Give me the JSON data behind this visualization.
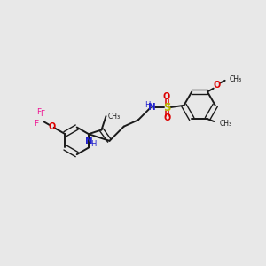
{
  "bg_color": "#e8e8e8",
  "bond_color": "#1a1a1a",
  "n_color": "#2020cd",
  "o_color": "#dd0000",
  "f_color": "#ee1493",
  "s_color": "#b8b800",
  "text_color": "#1a1a1a",
  "figsize": [
    3.0,
    3.0
  ],
  "dpi": 100,
  "xlim": [
    0,
    10
  ],
  "ylim": [
    0,
    10
  ]
}
